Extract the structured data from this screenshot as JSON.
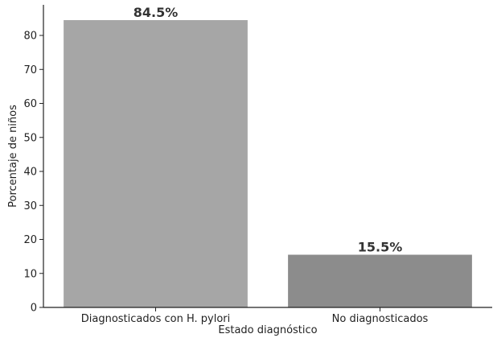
{
  "chart_data": {
    "type": "bar",
    "title": "",
    "xlabel": "Estado diagnóstico",
    "ylabel": "Porcentaje de niños",
    "categories": [
      "Diagnosticados con H. pylori",
      "No diagnosticados"
    ],
    "values": [
      84.5,
      15.5
    ],
    "data_labels": [
      "84.5%",
      "15.5%"
    ],
    "ylim": [
      0,
      89
    ],
    "yticks": [
      0,
      10,
      20,
      30,
      40,
      50,
      60,
      70,
      80
    ],
    "grid": false,
    "legend": "none",
    "colors": {
      "bars": [
        "#a6a6a6",
        "#8c8c8c"
      ],
      "axis": "#222222"
    }
  }
}
